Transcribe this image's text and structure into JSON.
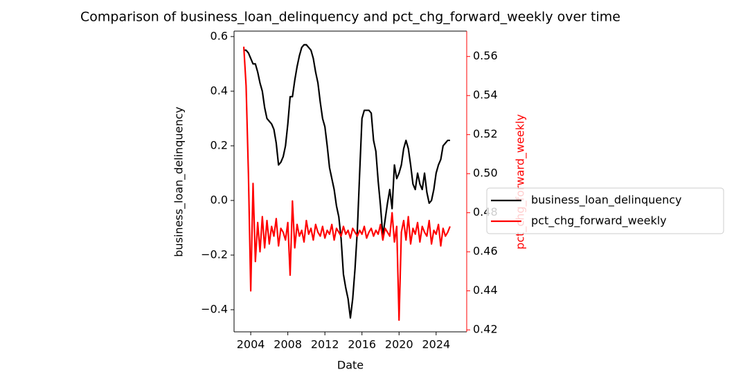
{
  "chart_data": {
    "type": "line",
    "title": "Comparison of business_loan_delinquency and pct_chg_forward_weekly over time",
    "x_label": "Date",
    "y_label": "business_loan_delinquency",
    "y2_label": "pct_chg_forward_weekly",
    "legend": "right",
    "x": [
      2003.25,
      2003.5,
      2003.75,
      2004,
      2004.25,
      2004.5,
      2004.75,
      2005,
      2005.25,
      2005.5,
      2005.75,
      2006,
      2006.25,
      2006.5,
      2006.75,
      2007,
      2007.25,
      2007.5,
      2007.75,
      2008,
      2008.25,
      2008.5,
      2008.75,
      2009,
      2009.25,
      2009.5,
      2009.75,
      2010,
      2010.25,
      2010.5,
      2010.75,
      2011,
      2011.25,
      2011.5,
      2011.75,
      2012,
      2012.25,
      2012.5,
      2012.75,
      2013,
      2013.25,
      2013.5,
      2013.75,
      2014,
      2014.25,
      2014.5,
      2014.75,
      2015,
      2015.25,
      2015.5,
      2015.75,
      2016,
      2016.25,
      2016.5,
      2016.75,
      2017,
      2017.25,
      2017.5,
      2017.75,
      2018,
      2018.25,
      2018.5,
      2018.75,
      2019,
      2019.25,
      2019.5,
      2019.75,
      2020,
      2020.25,
      2020.5,
      2020.75,
      2021,
      2021.25,
      2021.5,
      2021.75,
      2022,
      2022.25,
      2022.5,
      2022.75,
      2023,
      2023.25,
      2023.5,
      2023.75,
      2024,
      2024.25,
      2024.5,
      2024.75,
      2025,
      2025.25,
      2025.5
    ],
    "series": [
      {
        "name": "business_loan_delinquency",
        "color": "#000000",
        "axis": "y",
        "values": [
          0.55,
          0.55,
          0.54,
          0.52,
          0.5,
          0.5,
          0.47,
          0.43,
          0.4,
          0.34,
          0.3,
          0.29,
          0.28,
          0.26,
          0.21,
          0.13,
          0.14,
          0.16,
          0.2,
          0.28,
          0.38,
          0.38,
          0.44,
          0.49,
          0.53,
          0.56,
          0.57,
          0.57,
          0.56,
          0.55,
          0.52,
          0.47,
          0.43,
          0.36,
          0.3,
          0.27,
          0.2,
          0.12,
          0.08,
          0.04,
          -0.02,
          -0.06,
          -0.14,
          -0.27,
          -0.32,
          -0.36,
          -0.43,
          -0.36,
          -0.25,
          -0.11,
          0.1,
          0.3,
          0.33,
          0.33,
          0.33,
          0.32,
          0.22,
          0.18,
          0.07,
          -0.02,
          -0.13,
          -0.07,
          -0.01,
          0.04,
          -0.03,
          0.13,
          0.08,
          0.1,
          0.13,
          0.19,
          0.22,
          0.19,
          0.13,
          0.06,
          0.04,
          0.1,
          0.06,
          0.04,
          0.1,
          0.03,
          -0.01,
          0.0,
          0.04,
          0.1,
          0.13,
          0.15,
          0.2,
          0.21,
          0.22,
          0.22
        ]
      },
      {
        "name": "pct_chg_forward_weekly",
        "color": "#ff0000",
        "axis": "y2",
        "values": [
          0.565,
          0.545,
          0.5,
          0.44,
          0.495,
          0.455,
          0.475,
          0.46,
          0.478,
          0.462,
          0.476,
          0.464,
          0.473,
          0.468,
          0.477,
          0.463,
          0.472,
          0.47,
          0.466,
          0.475,
          0.448,
          0.486,
          0.462,
          0.474,
          0.468,
          0.471,
          0.465,
          0.476,
          0.469,
          0.472,
          0.466,
          0.474,
          0.47,
          0.468,
          0.473,
          0.467,
          0.471,
          0.469,
          0.474,
          0.466,
          0.472,
          0.47,
          0.468,
          0.473,
          0.469,
          0.471,
          0.467,
          0.472,
          0.47,
          0.468,
          0.471,
          0.469,
          0.473,
          0.467,
          0.47,
          0.472,
          0.468,
          0.471,
          0.469,
          0.474,
          0.466,
          0.472,
          0.47,
          0.468,
          0.48,
          0.465,
          0.473,
          0.425,
          0.47,
          0.476,
          0.466,
          0.478,
          0.464,
          0.472,
          0.469,
          0.475,
          0.465,
          0.473,
          0.47,
          0.468,
          0.476,
          0.464,
          0.471,
          0.469,
          0.474,
          0.463,
          0.472,
          0.468,
          0.47,
          0.473
        ]
      }
    ],
    "xlim": [
      2002.2,
      2027.3
    ],
    "xticks": [
      2004,
      2008,
      2012,
      2016,
      2020,
      2024
    ],
    "ylim": [
      -0.481,
      0.62
    ],
    "yticks": [
      {
        "value": -0.4,
        "label": "−0.4"
      },
      {
        "value": -0.2,
        "label": "−0.2"
      },
      {
        "value": 0,
        "label": "0.0"
      },
      0.2,
      0.4,
      0.6
    ],
    "y2lim": [
      0.419,
      0.573
    ],
    "y2ticks": [
      0.42,
      0.44,
      0.46,
      0.48,
      {
        "value": 0.5,
        "label": "0.50"
      },
      0.52,
      0.54,
      0.56
    ],
    "y2_color": "#ff0000"
  }
}
